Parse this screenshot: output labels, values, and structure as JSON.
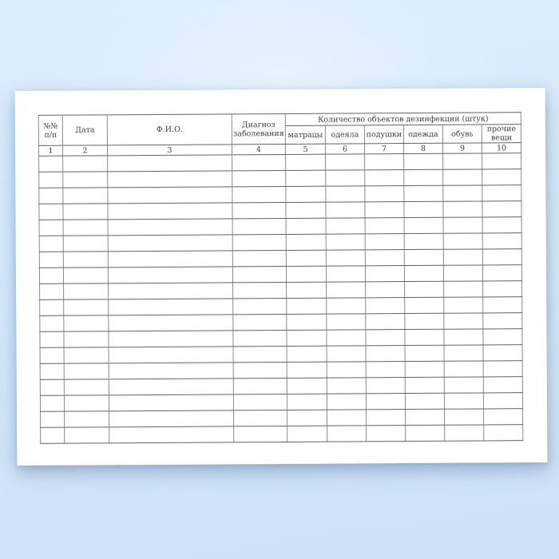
{
  "colors": {
    "background_top": "#dcedfc",
    "background_bottom": "#cde0f6",
    "paper": "#ffffff",
    "grid_line_horizontal": "#636363",
    "grid_line_vertical": "#8a8a8a",
    "text": "#3c3c3c"
  },
  "paper_form": {
    "table": {
      "group_header_label": "Количество объектов дезинфекции (штук)",
      "main_columns": [
        {
          "label_lines": [
            "№№",
            "п/п"
          ],
          "number": "1"
        },
        {
          "label_lines": [
            "Дата"
          ],
          "number": "2"
        },
        {
          "label_lines": [
            "Ф.И.О."
          ],
          "number": "3"
        },
        {
          "label_lines": [
            "Диагноз",
            "заболевания"
          ],
          "number": "4"
        }
      ],
      "sub_columns": [
        {
          "label_lines": [
            "матрацы"
          ],
          "number": "5"
        },
        {
          "label_lines": [
            "одеяла"
          ],
          "number": "6"
        },
        {
          "label_lines": [
            "подушки"
          ],
          "number": "7"
        },
        {
          "label_lines": [
            "одежда"
          ],
          "number": "8"
        },
        {
          "label_lines": [
            "обувь"
          ],
          "number": "9"
        },
        {
          "label_lines": [
            "прочие",
            "вещи"
          ],
          "number": "10"
        }
      ],
      "empty_body_rows": 18,
      "empty_cell_value": ""
    }
  }
}
